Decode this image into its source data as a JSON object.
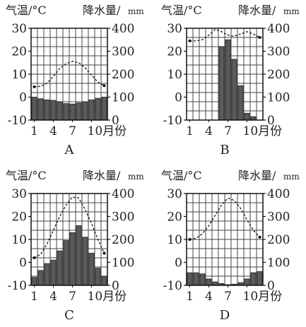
{
  "chart_data": [
    {
      "type": "bar",
      "panel_label": "A",
      "header_left": "气温/°C",
      "header_right": "降水量/",
      "header_right_unit": "mm",
      "x": [
        1,
        2,
        3,
        4,
        5,
        6,
        7,
        8,
        9,
        10,
        11,
        12
      ],
      "xtick_labels": [
        "1",
        "4",
        "7",
        "10月份"
      ],
      "left_ticks": [
        "30",
        "20",
        "10",
        "0",
        "-10"
      ],
      "right_ticks": [
        "400",
        "300",
        "200",
        "100",
        "0"
      ],
      "left_ylim": [
        -10,
        30
      ],
      "right_ylim": [
        0,
        400
      ],
      "grid": true,
      "series": [
        {
          "kind": "bar",
          "axis": "right",
          "values": [
            100,
            93,
            88,
            86,
            80,
            72,
            70,
            75,
            80,
            88,
            95,
            100
          ]
        },
        {
          "kind": "line",
          "axis": "left",
          "values": [
            4.5,
            4.7,
            6,
            9,
            12.5,
            14.5,
            15.6,
            15,
            12.8,
            9.5,
            6.5,
            5
          ]
        }
      ]
    },
    {
      "type": "bar",
      "panel_label": "B",
      "header_left": "气温/°C",
      "header_right": "降水量/",
      "header_right_unit": "mm",
      "x": [
        1,
        2,
        3,
        4,
        5,
        6,
        7,
        8,
        9,
        10,
        11,
        12
      ],
      "xtick_labels": [
        "1",
        "4",
        "7",
        "10月份"
      ],
      "left_ticks": [
        "30",
        "20",
        "10",
        "0",
        "-10"
      ],
      "right_ticks": [
        "400",
        "300",
        "200",
        "100",
        "0"
      ],
      "left_ylim": [
        -10,
        30
      ],
      "right_ylim": [
        0,
        400
      ],
      "grid": true,
      "series": [
        {
          "kind": "bar",
          "axis": "right",
          "values": [
            0,
            0,
            0,
            0,
            0,
            320,
            350,
            265,
            150,
            30,
            15,
            0
          ]
        },
        {
          "kind": "line",
          "axis": "left",
          "values": [
            24.5,
            24.5,
            25,
            27,
            29.5,
            28.5,
            27,
            26.5,
            27.5,
            28.5,
            27.5,
            26
          ]
        }
      ]
    },
    {
      "type": "bar",
      "panel_label": "C",
      "header_left": "气温/°C",
      "header_right": "降水量/",
      "header_right_unit": "mm",
      "x": [
        1,
        2,
        3,
        4,
        5,
        6,
        7,
        8,
        9,
        10,
        11,
        12
      ],
      "xtick_labels": [
        "1",
        "4",
        "7",
        "10月份"
      ],
      "left_ticks": [
        "30",
        "20",
        "10",
        "0",
        "-10"
      ],
      "right_ticks": [
        "400",
        "300",
        "200",
        "100",
        "0"
      ],
      "left_ylim": [
        -10,
        30
      ],
      "right_ylim": [
        0,
        400
      ],
      "grid": true,
      "series": [
        {
          "kind": "bar",
          "axis": "right",
          "values": [
            35,
            65,
            95,
            110,
            150,
            195,
            230,
            260,
            210,
            140,
            75,
            40
          ]
        },
        {
          "kind": "line",
          "axis": "left",
          "values": [
            2,
            3.5,
            8,
            14,
            20,
            25,
            28.5,
            28,
            23,
            17,
            10,
            4
          ]
        }
      ]
    },
    {
      "type": "bar",
      "panel_label": "D",
      "header_left": "气温/°C",
      "header_right": "降水量/",
      "header_right_unit": "mm",
      "x": [
        1,
        2,
        3,
        4,
        5,
        6,
        7,
        8,
        9,
        10,
        11,
        12
      ],
      "xtick_labels": [
        "1",
        "4",
        "7",
        "10月份"
      ],
      "left_ticks": [
        "30",
        "20",
        "10",
        "0",
        "-10"
      ],
      "right_ticks": [
        "400",
        "300",
        "200",
        "100",
        "0"
      ],
      "left_ylim": [
        -10,
        30
      ],
      "right_ylim": [
        0,
        400
      ],
      "grid": true,
      "series": [
        {
          "kind": "bar",
          "axis": "right",
          "values": [
            55,
            55,
            50,
            28,
            15,
            8,
            3,
            5,
            12,
            28,
            55,
            60
          ]
        },
        {
          "kind": "line",
          "axis": "left",
          "values": [
            10,
            10.5,
            12.5,
            16,
            20.5,
            25,
            28,
            27,
            23.5,
            18.5,
            14,
            11
          ]
        }
      ]
    }
  ]
}
